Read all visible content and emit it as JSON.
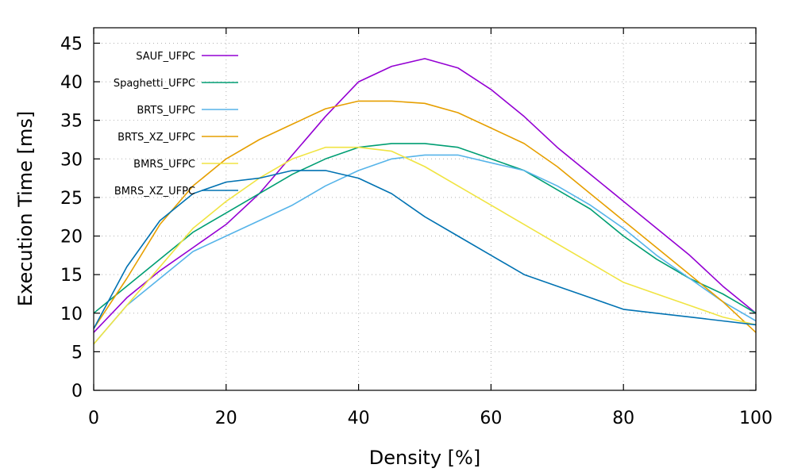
{
  "chart_data": {
    "type": "line",
    "xlabel": "Density [%]",
    "ylabel": "Execution Time [ms]",
    "xlim": [
      0,
      100
    ],
    "ylim": [
      0,
      47
    ],
    "x_ticks": [
      0,
      20,
      40,
      60,
      80,
      100
    ],
    "y_ticks": [
      0,
      5,
      10,
      15,
      20,
      25,
      30,
      35,
      40,
      45
    ],
    "grid": true,
    "legend_position": "top-left",
    "x": [
      0,
      5,
      10,
      15,
      20,
      25,
      30,
      35,
      40,
      45,
      50,
      55,
      60,
      65,
      70,
      75,
      80,
      85,
      90,
      95,
      100
    ],
    "series": [
      {
        "name": "SAUF_UFPC",
        "color": "#9400d3",
        "values": [
          7.5,
          12,
          15.5,
          18.5,
          21.5,
          25.5,
          30.5,
          35.5,
          40,
          42,
          43,
          41.8,
          39,
          35.5,
          31.5,
          28,
          24.5,
          21,
          17.5,
          13.5,
          10
        ]
      },
      {
        "name": "Spaghetti_UFPC",
        "color": "#009e73",
        "values": [
          10,
          13.5,
          17,
          20.5,
          23,
          25.5,
          28,
          30,
          31.5,
          32,
          32,
          31.5,
          30,
          28.5,
          26,
          23.5,
          20,
          17,
          14.5,
          12.5,
          10
        ]
      },
      {
        "name": "BRTS_UFPC",
        "color": "#56b4e9",
        "values": [
          6,
          11,
          14.5,
          18,
          20,
          22,
          24,
          26.5,
          28.5,
          30,
          30.5,
          30.5,
          29.5,
          28.5,
          26.5,
          24,
          21,
          17.5,
          14.5,
          11.5,
          9
        ]
      },
      {
        "name": "BRTS_XZ_UFPC",
        "color": "#e69f00",
        "values": [
          8,
          14.5,
          21.5,
          26.5,
          30,
          32.5,
          34.5,
          36.5,
          37.5,
          37.5,
          37.2,
          36,
          34,
          32,
          29,
          25.5,
          22,
          18.5,
          15,
          11.5,
          7.5
        ]
      },
      {
        "name": "BMRS_UFPC",
        "color": "#f0e442",
        "values": [
          6,
          11,
          16,
          21,
          24.5,
          27.5,
          30,
          31.5,
          31.5,
          31,
          29,
          26.5,
          24,
          21.5,
          19,
          16.5,
          14,
          12.5,
          11,
          9.5,
          8.5
        ]
      },
      {
        "name": "BMRS_XZ_UFPC",
        "color": "#0072b2",
        "values": [
          8,
          16,
          22,
          25.5,
          27,
          27.5,
          28.5,
          28.5,
          27.5,
          25.5,
          22.5,
          20,
          17.5,
          15,
          13.5,
          12,
          10.5,
          10,
          9.5,
          9,
          8.5
        ]
      }
    ]
  }
}
